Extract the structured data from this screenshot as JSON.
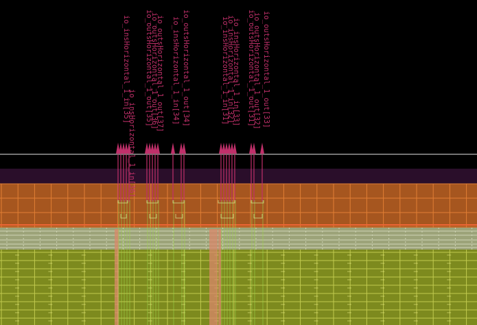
{
  "pin_labels": [
    "io_insHorizontal_1_in[35]",
    "io_insHorizontal_1_in[36]",
    "io_outsHorizontal_1_out[35]",
    "io_outsHorizontal_1_out[36]",
    "io_outsHorizontal_1_out[37]",
    "io_insHorizontal_1_in[34]",
    "io_outsHorizontal_1_out[34]",
    "io_insHorizontal_1_in[31]",
    "io_insHorizontal_1_in[32]",
    "io_insHorizontal_1_in[33]",
    "io_outsHorizontal_1_out[31]",
    "io_outsHorizontal_1_out[32]",
    "io_outsHorizontal_1_out[33]"
  ],
  "colors": {
    "background": "#000000",
    "pin_label": "#c0306a",
    "boundary_line": "#e8e8e8",
    "purple_band": "#2a0e2a",
    "orange_fill": "#a6561f",
    "orange_grid": "#f08a3a",
    "green_fill": "#7d8a1e",
    "green_grid": "#d8e060",
    "pale_band": "#b7c08e",
    "salmon_wire": "#d9886a"
  },
  "icons": [
    "pin-arrow-icon"
  ]
}
